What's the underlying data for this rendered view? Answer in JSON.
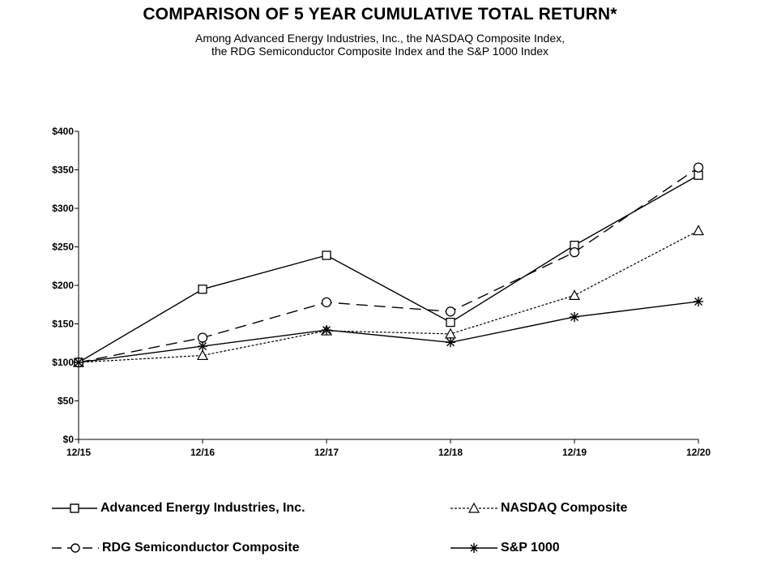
{
  "chart_data": {
    "type": "line",
    "title": "COMPARISON OF 5 YEAR CUMULATIVE TOTAL RETURN*",
    "subtitle_lines": [
      "Among Advanced Energy Industries, Inc., the NASDAQ Composite Index,",
      "the RDG Semiconductor Composite Index and the S&P 1000 Index"
    ],
    "categories": [
      "12/15",
      "12/16",
      "12/17",
      "12/18",
      "12/19",
      "12/20"
    ],
    "ylim": [
      0,
      400
    ],
    "yticks": [
      0,
      50,
      100,
      150,
      200,
      250,
      300,
      350,
      400
    ],
    "ytick_labels": [
      "$0",
      "$50",
      "$100",
      "$150",
      "$200",
      "$250",
      "$300",
      "$350",
      "$400"
    ],
    "grid": false,
    "legend_position": "bottom",
    "series": [
      {
        "name": "Advanced Energy Industries, Inc.",
        "values": [
          100,
          195,
          239,
          152,
          252,
          343
        ],
        "marker": "square",
        "dash": "solid"
      },
      {
        "name": "NASDAQ Composite",
        "values": [
          100,
          109,
          141,
          137,
          187,
          271
        ],
        "marker": "triangle",
        "dash": "dotted"
      },
      {
        "name": "RDG Semiconductor Composite",
        "values": [
          100,
          132,
          178,
          166,
          243,
          353
        ],
        "marker": "circle",
        "dash": "dashed"
      },
      {
        "name": "S&P 1000",
        "values": [
          100,
          121,
          142,
          126,
          159,
          179
        ],
        "marker": "star",
        "dash": "solid"
      }
    ]
  }
}
